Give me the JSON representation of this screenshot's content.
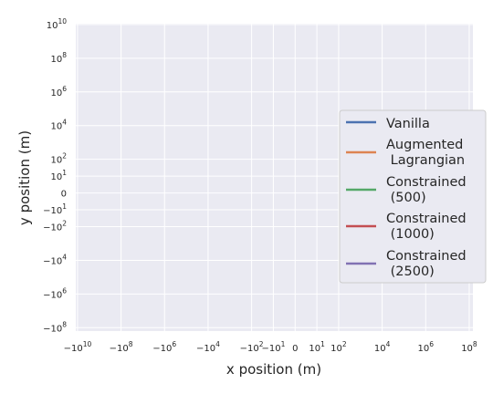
{
  "chart_data": {
    "type": "line",
    "xlabel": "x position (m)",
    "ylabel": "y position (m)",
    "xscale": "symlog",
    "yscale": "symlog",
    "xlim": [
      -10000000000.0,
      100000000.0
    ],
    "ylim": [
      -100000000.0,
      10000000000.0
    ],
    "grid": true,
    "legend_position": "center-right",
    "x_ticks": [
      {
        "value": -10000000000.0,
        "base": "−10",
        "exp": "10"
      },
      {
        "value": -100000000.0,
        "base": "−10",
        "exp": "8"
      },
      {
        "value": -1000000.0,
        "base": "−10",
        "exp": "6"
      },
      {
        "value": -10000.0,
        "base": "−10",
        "exp": "4"
      },
      {
        "value": -100.0,
        "base": "−10",
        "exp": "2"
      },
      {
        "value": -10.0,
        "base": "−10",
        "exp": "1"
      },
      {
        "value": 0,
        "base": "0",
        "exp": ""
      },
      {
        "value": 10.0,
        "base": "10",
        "exp": "1"
      },
      {
        "value": 100.0,
        "base": "10",
        "exp": "2"
      },
      {
        "value": 10000.0,
        "base": "10",
        "exp": "4"
      },
      {
        "value": 1000000.0,
        "base": "10",
        "exp": "6"
      },
      {
        "value": 100000000.0,
        "base": "10",
        "exp": "8"
      }
    ],
    "y_ticks": [
      {
        "value": 10000000000.0,
        "base": "10",
        "exp": "10"
      },
      {
        "value": 100000000.0,
        "base": "10",
        "exp": "8"
      },
      {
        "value": 1000000.0,
        "base": "10",
        "exp": "6"
      },
      {
        "value": 10000.0,
        "base": "10",
        "exp": "4"
      },
      {
        "value": 100.0,
        "base": "10",
        "exp": "2"
      },
      {
        "value": 10.0,
        "base": "10",
        "exp": "1"
      },
      {
        "value": 0,
        "base": "0",
        "exp": ""
      },
      {
        "value": -10.0,
        "base": "−10",
        "exp": "1"
      },
      {
        "value": -100.0,
        "base": "−10",
        "exp": "2"
      },
      {
        "value": -10000.0,
        "base": "−10",
        "exp": "4"
      },
      {
        "value": -1000000.0,
        "base": "−10",
        "exp": "6"
      },
      {
        "value": -100000000.0,
        "base": "−10",
        "exp": "8"
      }
    ],
    "series": [
      {
        "name_lines": [
          "Vanilla"
        ],
        "color": "#4c72b0",
        "x": [],
        "y": []
      },
      {
        "name_lines": [
          "Augmented",
          " Lagrangian"
        ],
        "color": "#dd8452",
        "x": [],
        "y": []
      },
      {
        "name_lines": [
          "Constrained",
          " (500)"
        ],
        "color": "#55a868",
        "x": [],
        "y": []
      },
      {
        "name_lines": [
          "Constrained",
          " (1000)"
        ],
        "color": "#c44e52",
        "x": [],
        "y": []
      },
      {
        "name_lines": [
          "Constrained",
          " (2500)"
        ],
        "color": "#8172b3",
        "x": [],
        "y": []
      }
    ]
  }
}
